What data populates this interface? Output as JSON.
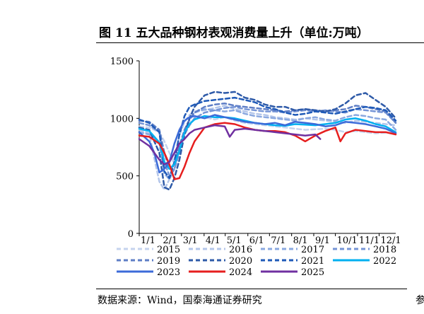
{
  "header": {
    "title": "图 11 五大品种钢材表观消费量上升（单位:万吨）"
  },
  "footer": {
    "source": "数据来源：Wind，国泰海通证券研究",
    "edge_mark": "参"
  },
  "chart_data": {
    "type": "line",
    "title": "图 11 五大品种钢材表观消费量上升（单位:万吨）",
    "xlabel": "",
    "ylabel": "",
    "ylim": [
      0,
      1500
    ],
    "yticks": [
      "0",
      "500",
      "1000",
      "1500"
    ],
    "xlim": [
      1,
      52
    ],
    "xticks": [
      {
        "label": "1/1",
        "week": 1
      },
      {
        "label": "2/1",
        "week": 5.4
      },
      {
        "label": "3/1",
        "week": 9.4
      },
      {
        "label": "4/1",
        "week": 13.9
      },
      {
        "label": "5/1",
        "week": 18.1
      },
      {
        "label": "6/1",
        "week": 22.6
      },
      {
        "label": "7/1",
        "week": 26.9
      },
      {
        "label": "8/1",
        "week": 31.3
      },
      {
        "label": "9/1",
        "week": 35.7
      },
      {
        "label": "10/1",
        "week": 40.0
      },
      {
        "label": "11/1",
        "week": 44.4
      },
      {
        "label": "12/1",
        "week": 48.7
      }
    ],
    "grid": false,
    "legend_position": "bottom",
    "series": [
      {
        "name": "2015",
        "color": "#c5d3ee",
        "dash": "6,4",
        "width": 2.5,
        "x": [
          1,
          3,
          5,
          6,
          7,
          8,
          9,
          10,
          11,
          12,
          14,
          16,
          18,
          20,
          22,
          24,
          26,
          28,
          30,
          32,
          34,
          36,
          38,
          40,
          42,
          44,
          46,
          48,
          50,
          52
        ],
        "y": [
          930,
          920,
          880,
          800,
          700,
          600,
          720,
          870,
          960,
          1000,
          1010,
          990,
          1010,
          980,
          960,
          950,
          940,
          930,
          920,
          910,
          900,
          905,
          910,
          900,
          880,
          890,
          880,
          870,
          875,
          870
        ]
      },
      {
        "name": "2016",
        "color": "#b4c6ea",
        "dash": "6,4",
        "width": 2.5,
        "x": [
          1,
          3,
          4,
          5,
          6,
          7,
          8,
          9,
          10,
          11,
          12,
          14,
          16,
          18,
          20,
          22,
          24,
          26,
          28,
          30,
          32,
          34,
          36,
          38,
          40,
          42,
          44,
          46,
          48,
          50,
          52
        ],
        "y": [
          900,
          870,
          650,
          450,
          380,
          470,
          650,
          850,
          970,
          1030,
          1060,
          1070,
          1090,
          1110,
          1080,
          1060,
          1040,
          1030,
          1010,
          1000,
          990,
          1000,
          990,
          980,
          970,
          960,
          980,
          970,
          960,
          950,
          940
        ]
      },
      {
        "name": "2017",
        "color": "#8aa8e0",
        "dash": "6,4",
        "width": 2.5,
        "x": [
          1,
          3,
          5,
          6,
          7,
          8,
          9,
          10,
          11,
          12,
          14,
          16,
          18,
          20,
          22,
          24,
          26,
          28,
          30,
          32,
          34,
          36,
          38,
          40,
          42,
          44,
          46,
          48,
          50,
          52
        ],
        "y": [
          880,
          860,
          780,
          520,
          470,
          560,
          760,
          900,
          990,
          1050,
          1080,
          1070,
          1060,
          1070,
          1040,
          1020,
          1010,
          1000,
          990,
          980,
          1000,
          1010,
          990,
          980,
          1010,
          1030,
          1020,
          1000,
          990,
          900
        ]
      },
      {
        "name": "2018",
        "color": "#7594d6",
        "dash": "6,4",
        "width": 2.5,
        "x": [
          1,
          3,
          5,
          6,
          7,
          8,
          9,
          10,
          11,
          12,
          14,
          16,
          18,
          20,
          22,
          24,
          26,
          28,
          30,
          32,
          34,
          36,
          38,
          40,
          42,
          44,
          46,
          48,
          50,
          52
        ],
        "y": [
          960,
          940,
          880,
          620,
          500,
          560,
          700,
          860,
          940,
          1000,
          1050,
          1070,
          1090,
          1100,
          1080,
          1070,
          1060,
          1060,
          1050,
          1060,
          1070,
          1060,
          1070,
          1060,
          1050,
          1080,
          1070,
          1060,
          1050,
          960
        ]
      },
      {
        "name": "2019",
        "color": "#5e7ec6",
        "dash": "6,4",
        "width": 2.5,
        "x": [
          1,
          3,
          5,
          6,
          7,
          8,
          9,
          10,
          11,
          12,
          14,
          16,
          18,
          20,
          22,
          24,
          26,
          28,
          30,
          32,
          34,
          36,
          38,
          40,
          42,
          44,
          46,
          48,
          50,
          52
        ],
        "y": [
          980,
          970,
          900,
          700,
          560,
          600,
          760,
          900,
          990,
          1050,
          1100,
          1120,
          1130,
          1110,
          1100,
          1090,
          1080,
          1070,
          1060,
          1070,
          1080,
          1070,
          1060,
          1070,
          1080,
          1110,
          1100,
          1080,
          1060,
          960
        ]
      },
      {
        "name": "2020",
        "color": "#2e5aa8",
        "dash": "6,4",
        "width": 2.5,
        "x": [
          1,
          3,
          5,
          6,
          7,
          8,
          9,
          10,
          11,
          12,
          14,
          16,
          18,
          20,
          22,
          24,
          26,
          28,
          30,
          32,
          34,
          36,
          38,
          40,
          42,
          44,
          46,
          48,
          50,
          52
        ],
        "y": [
          920,
          900,
          700,
          400,
          380,
          480,
          640,
          860,
          1000,
          1100,
          1200,
          1230,
          1220,
          1230,
          1180,
          1160,
          1120,
          1100,
          1100,
          1070,
          1080,
          1070,
          1060,
          1080,
          1130,
          1200,
          1220,
          1160,
          1100,
          1000
        ]
      },
      {
        "name": "2021",
        "color": "#1f5ab8",
        "dash": "6,4",
        "width": 2.5,
        "x": [
          1,
          3,
          5,
          6,
          7,
          8,
          9,
          10,
          11,
          12,
          14,
          16,
          18,
          20,
          22,
          24,
          26,
          28,
          30,
          32,
          34,
          36,
          38,
          40,
          42,
          44,
          46,
          48,
          50,
          52
        ],
        "y": [
          990,
          960,
          880,
          540,
          480,
          620,
          860,
          1020,
          1100,
          1120,
          1150,
          1160,
          1170,
          1180,
          1160,
          1140,
          1100,
          1080,
          1050,
          1030,
          1040,
          1060,
          1050,
          1040,
          1060,
          1080,
          1100,
          1090,
          1070,
          980
        ]
      },
      {
        "name": "2022",
        "color": "#00b0f0",
        "dash": "",
        "width": 2.5,
        "x": [
          1,
          3,
          5,
          6,
          7,
          8,
          9,
          10,
          11,
          12,
          14,
          16,
          18,
          20,
          22,
          24,
          26,
          28,
          30,
          32,
          34,
          36,
          38,
          40,
          42,
          44,
          46,
          48,
          50,
          52
        ],
        "y": [
          910,
          890,
          790,
          620,
          560,
          600,
          720,
          880,
          950,
          990,
          1020,
          1010,
          1010,
          1000,
          980,
          960,
          950,
          940,
          935,
          950,
          945,
          940,
          950,
          960,
          990,
          1000,
          980,
          950,
          930,
          880
        ]
      },
      {
        "name": "2023",
        "color": "#3c6bd9",
        "dash": "",
        "width": 2.5,
        "x": [
          1,
          3,
          4,
          5,
          6,
          7,
          8,
          9,
          10,
          11,
          12,
          14,
          16,
          18,
          20,
          22,
          24,
          26,
          28,
          30,
          32,
          34,
          36,
          38,
          40,
          42,
          44,
          46,
          48,
          50,
          52
        ],
        "y": [
          880,
          800,
          700,
          530,
          560,
          620,
          780,
          900,
          980,
          1010,
          1020,
          1000,
          1030,
          1010,
          990,
          970,
          960,
          950,
          960,
          940,
          970,
          960,
          950,
          930,
          940,
          970,
          960,
          950,
          930,
          910,
          870
        ]
      },
      {
        "name": "2024",
        "color": "#e61e1e",
        "dash": "",
        "width": 2.5,
        "x": [
          1,
          3,
          5,
          6,
          7,
          8,
          9,
          10,
          11,
          12,
          14,
          16,
          18,
          20,
          22,
          24,
          26,
          28,
          30,
          32,
          34,
          36,
          38,
          40,
          41,
          42,
          44,
          46,
          48,
          50,
          52
        ],
        "y": [
          850,
          840,
          780,
          700,
          600,
          470,
          480,
          580,
          700,
          800,
          920,
          950,
          960,
          950,
          920,
          900,
          890,
          890,
          880,
          850,
          800,
          850,
          890,
          920,
          800,
          870,
          900,
          890,
          880,
          880,
          860
        ]
      },
      {
        "name": "2025",
        "color": "#7030a0",
        "dash": "",
        "width": 2.5,
        "x": [
          1,
          3,
          5,
          6,
          7,
          8,
          9,
          10,
          11,
          12,
          14,
          16,
          18,
          19,
          20,
          22,
          24,
          26,
          28,
          30,
          32,
          34,
          36,
          37
        ],
        "y": [
          820,
          760,
          640,
          600,
          620,
          700,
          780,
          820,
          870,
          900,
          920,
          940,
          930,
          840,
          900,
          910,
          900,
          890,
          880,
          870,
          860,
          850,
          860,
          820
        ]
      }
    ]
  }
}
